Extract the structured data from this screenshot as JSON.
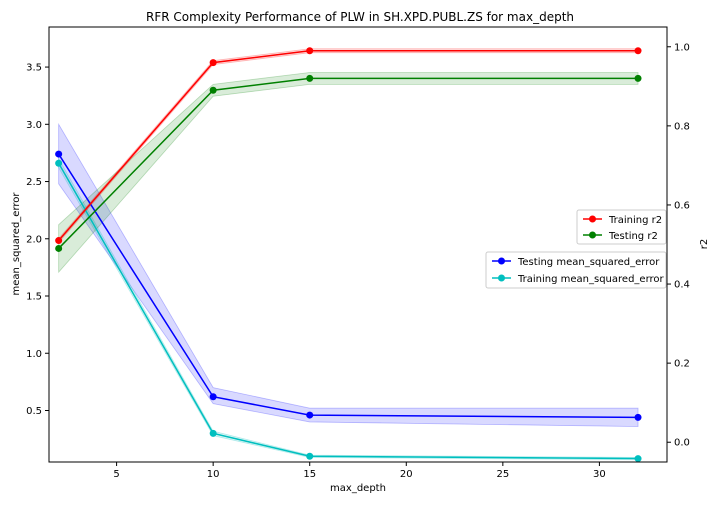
{
  "chart_data": {
    "type": "line",
    "title": "RFR Complexity Performance of PLW in SH.XPD.PUBL.ZS  for max_depth",
    "xlabel": "max_depth",
    "ylabel_left": "mean_squared_error",
    "ylabel_right": "r2",
    "xlim": [
      1.5,
      33.5
    ],
    "ylim_left": [
      0.05,
      3.85
    ],
    "ylim_right": [
      -0.05,
      1.05
    ],
    "x_ticks": [
      5,
      10,
      15,
      20,
      25,
      30
    ],
    "y_ticks_left": [
      0.5,
      1.0,
      1.5,
      2.0,
      2.5,
      3.0,
      3.5
    ],
    "y_ticks_right": [
      0.0,
      0.2,
      0.4,
      0.6,
      0.8,
      1.0
    ],
    "grid": false,
    "x": [
      2,
      10,
      15,
      32
    ],
    "series": [
      {
        "name": "Testing mean_squared_error",
        "axis": "left",
        "color": "#0000ff",
        "values": [
          2.74,
          0.62,
          0.46,
          0.44
        ],
        "band_low": [
          2.48,
          0.56,
          0.4,
          0.36
        ],
        "band_high": [
          3.0,
          0.7,
          0.52,
          0.52
        ]
      },
      {
        "name": "Training mean_squared_error",
        "axis": "left",
        "color": "#00bfbf",
        "values": [
          2.66,
          0.3,
          0.1,
          0.08
        ],
        "band_low": [
          2.62,
          0.28,
          0.09,
          0.07
        ],
        "band_high": [
          2.7,
          0.32,
          0.11,
          0.09
        ]
      },
      {
        "name": "Training r2",
        "axis": "right",
        "color": "#ff0000",
        "values": [
          0.51,
          0.96,
          0.99,
          0.99
        ],
        "band_low": [
          0.505,
          0.955,
          0.985,
          0.985
        ],
        "band_high": [
          0.515,
          0.965,
          0.995,
          0.995
        ]
      },
      {
        "name": "Testing r2",
        "axis": "right",
        "color": "#008000",
        "values": [
          0.49,
          0.89,
          0.92,
          0.92
        ],
        "band_low": [
          0.43,
          0.875,
          0.905,
          0.905
        ],
        "band_high": [
          0.55,
          0.905,
          0.935,
          0.935
        ]
      }
    ],
    "legends": [
      {
        "placement": "center-right",
        "entries": [
          "Training r2",
          "Testing r2"
        ]
      },
      {
        "placement": "center-right",
        "entries": [
          "Testing mean_squared_error",
          "Training mean_squared_error"
        ]
      }
    ]
  }
}
